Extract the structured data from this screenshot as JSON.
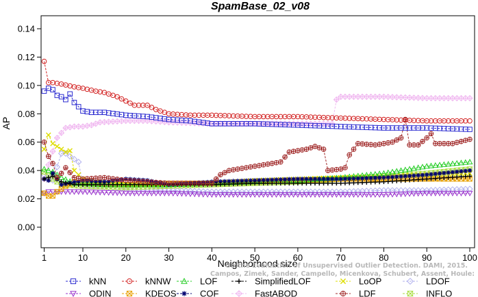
{
  "chart_data": {
    "type": "line",
    "title": "SpamBase_02_v08",
    "xlabel": "Neighborhood size",
    "ylabel": "AP",
    "xlim": [
      1,
      100
    ],
    "ylim": [
      0,
      0.14
    ],
    "xticks": [
      1,
      10,
      20,
      30,
      40,
      50,
      60,
      70,
      80,
      90,
      100
    ],
    "yticks": [
      "0.00",
      "0.02",
      "0.04",
      "0.06",
      "0.08",
      "0.10",
      "0.12",
      "0.14"
    ],
    "grid": false,
    "legend_position": "bottom",
    "watermark": {
      "line1": "Campos, Zimek, Sander, Campello, Micenkova, Schubert, Assent, Houle:",
      "line2": "On the Evaluation of Unsupervised Outlier Detection. DAMI, 2015."
    },
    "series": [
      {
        "name": "kNN",
        "color": "#2a2ad0",
        "marker": "square",
        "points": [
          [
            1,
            0.096
          ],
          [
            2,
            0.098
          ],
          [
            3,
            0.097
          ],
          [
            4,
            0.093
          ],
          [
            5,
            0.092
          ],
          [
            6,
            0.09
          ],
          [
            7,
            0.094
          ],
          [
            8,
            0.088
          ],
          [
            9,
            0.085
          ],
          [
            10,
            0.082
          ],
          [
            12,
            0.081
          ],
          [
            15,
            0.081
          ],
          [
            20,
            0.079
          ],
          [
            25,
            0.078
          ],
          [
            30,
            0.076
          ],
          [
            35,
            0.075
          ],
          [
            40,
            0.073
          ],
          [
            50,
            0.073
          ],
          [
            60,
            0.072
          ],
          [
            70,
            0.071
          ],
          [
            80,
            0.07
          ],
          [
            90,
            0.07
          ],
          [
            100,
            0.069
          ]
        ]
      },
      {
        "name": "kNNW",
        "color": "#d22020",
        "marker": "circle",
        "points": [
          [
            1,
            0.117
          ],
          [
            2,
            0.102
          ],
          [
            3,
            0.102
          ],
          [
            5,
            0.101
          ],
          [
            8,
            0.099
          ],
          [
            10,
            0.098
          ],
          [
            13,
            0.096
          ],
          [
            15,
            0.095
          ],
          [
            18,
            0.092
          ],
          [
            20,
            0.089
          ],
          [
            22,
            0.086
          ],
          [
            25,
            0.086
          ],
          [
            27,
            0.083
          ],
          [
            30,
            0.08
          ],
          [
            35,
            0.079
          ],
          [
            40,
            0.079
          ],
          [
            50,
            0.078
          ],
          [
            60,
            0.078
          ],
          [
            70,
            0.077
          ],
          [
            80,
            0.076
          ],
          [
            90,
            0.075
          ],
          [
            100,
            0.075
          ]
        ]
      },
      {
        "name": "LOF",
        "color": "#22cc22",
        "marker": "triangle",
        "points": [
          [
            1,
            0.041
          ],
          [
            3,
            0.039
          ],
          [
            5,
            0.035
          ],
          [
            8,
            0.031
          ],
          [
            10,
            0.031
          ],
          [
            15,
            0.03
          ],
          [
            20,
            0.03
          ],
          [
            30,
            0.03
          ],
          [
            40,
            0.031
          ],
          [
            50,
            0.032
          ],
          [
            60,
            0.033
          ],
          [
            70,
            0.035
          ],
          [
            80,
            0.038
          ],
          [
            90,
            0.043
          ],
          [
            100,
            0.046
          ]
        ]
      },
      {
        "name": "SimplifiedLOF",
        "color": "#000000",
        "marker": "plus",
        "points": [
          [
            1,
            0.034
          ],
          [
            3,
            0.036
          ],
          [
            5,
            0.032
          ],
          [
            8,
            0.03
          ],
          [
            10,
            0.03
          ],
          [
            20,
            0.03
          ],
          [
            30,
            0.03
          ],
          [
            40,
            0.03
          ],
          [
            50,
            0.031
          ],
          [
            60,
            0.031
          ],
          [
            70,
            0.031
          ],
          [
            80,
            0.032
          ],
          [
            90,
            0.034
          ],
          [
            100,
            0.036
          ]
        ]
      },
      {
        "name": "LoOP",
        "color": "#dddd00",
        "marker": "x",
        "points": [
          [
            1,
            0.055
          ],
          [
            2,
            0.065
          ],
          [
            3,
            0.059
          ],
          [
            4,
            0.057
          ],
          [
            5,
            0.055
          ],
          [
            6,
            0.053
          ],
          [
            7,
            0.054
          ],
          [
            8,
            0.04
          ],
          [
            10,
            0.034
          ],
          [
            15,
            0.031
          ],
          [
            20,
            0.03
          ],
          [
            30,
            0.03
          ],
          [
            40,
            0.031
          ],
          [
            50,
            0.033
          ],
          [
            60,
            0.034
          ],
          [
            70,
            0.035
          ],
          [
            80,
            0.036
          ],
          [
            90,
            0.037
          ],
          [
            100,
            0.038
          ]
        ]
      },
      {
        "name": "LDOF",
        "color": "#b0b0ee",
        "marker": "diamond",
        "points": [
          [
            1,
            0.037
          ],
          [
            3,
            0.033
          ],
          [
            5,
            0.052
          ],
          [
            6,
            0.052
          ],
          [
            7,
            0.05
          ],
          [
            8,
            0.048
          ],
          [
            9,
            0.046
          ],
          [
            10,
            0.03
          ],
          [
            20,
            0.027
          ],
          [
            30,
            0.026
          ],
          [
            40,
            0.025
          ],
          [
            50,
            0.025
          ],
          [
            60,
            0.025
          ],
          [
            70,
            0.025
          ],
          [
            80,
            0.026
          ],
          [
            90,
            0.026
          ],
          [
            100,
            0.027
          ]
        ]
      },
      {
        "name": "ODIN",
        "color": "#9933cc",
        "marker": "triangle-down",
        "points": [
          [
            1,
            0.024
          ],
          [
            2,
            0.025
          ],
          [
            5,
            0.025
          ],
          [
            10,
            0.025
          ],
          [
            20,
            0.024
          ],
          [
            30,
            0.024
          ],
          [
            40,
            0.023
          ],
          [
            50,
            0.023
          ],
          [
            60,
            0.023
          ],
          [
            70,
            0.023
          ],
          [
            80,
            0.023
          ],
          [
            90,
            0.024
          ],
          [
            100,
            0.024
          ]
        ]
      },
      {
        "name": "KDEOS",
        "color": "#e8a000",
        "marker": "boxed-x",
        "points": [
          [
            1,
            0.024
          ],
          [
            2,
            0.022
          ],
          [
            3,
            0.022
          ],
          [
            4,
            0.025
          ],
          [
            6,
            0.029
          ],
          [
            8,
            0.032
          ],
          [
            10,
            0.031
          ],
          [
            20,
            0.03
          ],
          [
            30,
            0.031
          ],
          [
            40,
            0.031
          ],
          [
            50,
            0.032
          ],
          [
            60,
            0.033
          ],
          [
            70,
            0.034
          ],
          [
            80,
            0.034
          ],
          [
            90,
            0.034
          ],
          [
            100,
            0.034
          ]
        ]
      },
      {
        "name": "COF",
        "color": "#000070",
        "marker": "star",
        "points": [
          [
            1,
            0.034
          ],
          [
            2,
            0.033
          ],
          [
            3,
            0.038
          ],
          [
            5,
            0.03
          ],
          [
            10,
            0.033
          ],
          [
            15,
            0.032
          ],
          [
            20,
            0.034
          ],
          [
            25,
            0.033
          ],
          [
            30,
            0.03
          ],
          [
            35,
            0.031
          ],
          [
            40,
            0.032
          ],
          [
            50,
            0.033
          ],
          [
            60,
            0.034
          ],
          [
            70,
            0.034
          ],
          [
            80,
            0.035
          ],
          [
            90,
            0.037
          ],
          [
            100,
            0.04
          ]
        ]
      },
      {
        "name": "FastABOD",
        "color": "#f0b8f0",
        "marker": "diamond-plus",
        "points": [
          [
            1,
            0.034
          ],
          [
            2,
            0.044
          ],
          [
            4,
            0.063
          ],
          [
            6,
            0.07
          ],
          [
            8,
            0.071
          ],
          [
            10,
            0.071
          ],
          [
            12,
            0.072
          ],
          [
            14,
            0.074
          ],
          [
            20,
            0.075
          ],
          [
            25,
            0.075
          ],
          [
            30,
            0.074
          ],
          [
            40,
            0.073
          ],
          [
            50,
            0.073
          ],
          [
            60,
            0.073
          ],
          [
            68,
            0.073
          ],
          [
            69,
            0.09
          ],
          [
            70,
            0.092
          ],
          [
            80,
            0.092
          ],
          [
            90,
            0.091
          ],
          [
            100,
            0.091
          ]
        ]
      },
      {
        "name": "LDF",
        "color": "#a02828",
        "marker": "circle-plus",
        "points": [
          [
            1,
            0.06
          ],
          [
            2,
            0.05
          ],
          [
            3,
            0.045
          ],
          [
            4,
            0.035
          ],
          [
            5,
            0.038
          ],
          [
            6,
            0.042
          ],
          [
            8,
            0.035
          ],
          [
            10,
            0.034
          ],
          [
            15,
            0.035
          ],
          [
            20,
            0.033
          ],
          [
            30,
            0.031
          ],
          [
            40,
            0.031
          ],
          [
            42,
            0.037
          ],
          [
            44,
            0.04
          ],
          [
            48,
            0.042
          ],
          [
            52,
            0.044
          ],
          [
            56,
            0.046
          ],
          [
            58,
            0.053
          ],
          [
            62,
            0.055
          ],
          [
            64,
            0.057
          ],
          [
            66,
            0.055
          ],
          [
            67,
            0.04
          ],
          [
            70,
            0.041
          ],
          [
            71,
            0.042
          ],
          [
            72,
            0.051
          ],
          [
            74,
            0.059
          ],
          [
            78,
            0.058
          ],
          [
            82,
            0.06
          ],
          [
            84,
            0.063
          ],
          [
            85,
            0.076
          ],
          [
            86,
            0.058
          ],
          [
            88,
            0.058
          ],
          [
            90,
            0.063
          ],
          [
            91,
            0.066
          ],
          [
            92,
            0.059
          ],
          [
            96,
            0.059
          ],
          [
            100,
            0.062
          ]
        ]
      },
      {
        "name": "INFLO",
        "color": "#aadd44",
        "marker": "hourglass",
        "points": [
          [
            1,
            0.039
          ],
          [
            3,
            0.034
          ],
          [
            5,
            0.03
          ],
          [
            10,
            0.029
          ],
          [
            20,
            0.028
          ],
          [
            30,
            0.029
          ],
          [
            40,
            0.03
          ],
          [
            50,
            0.031
          ],
          [
            60,
            0.032
          ],
          [
            70,
            0.034
          ],
          [
            80,
            0.036
          ],
          [
            90,
            0.038
          ],
          [
            100,
            0.041
          ]
        ]
      }
    ]
  }
}
